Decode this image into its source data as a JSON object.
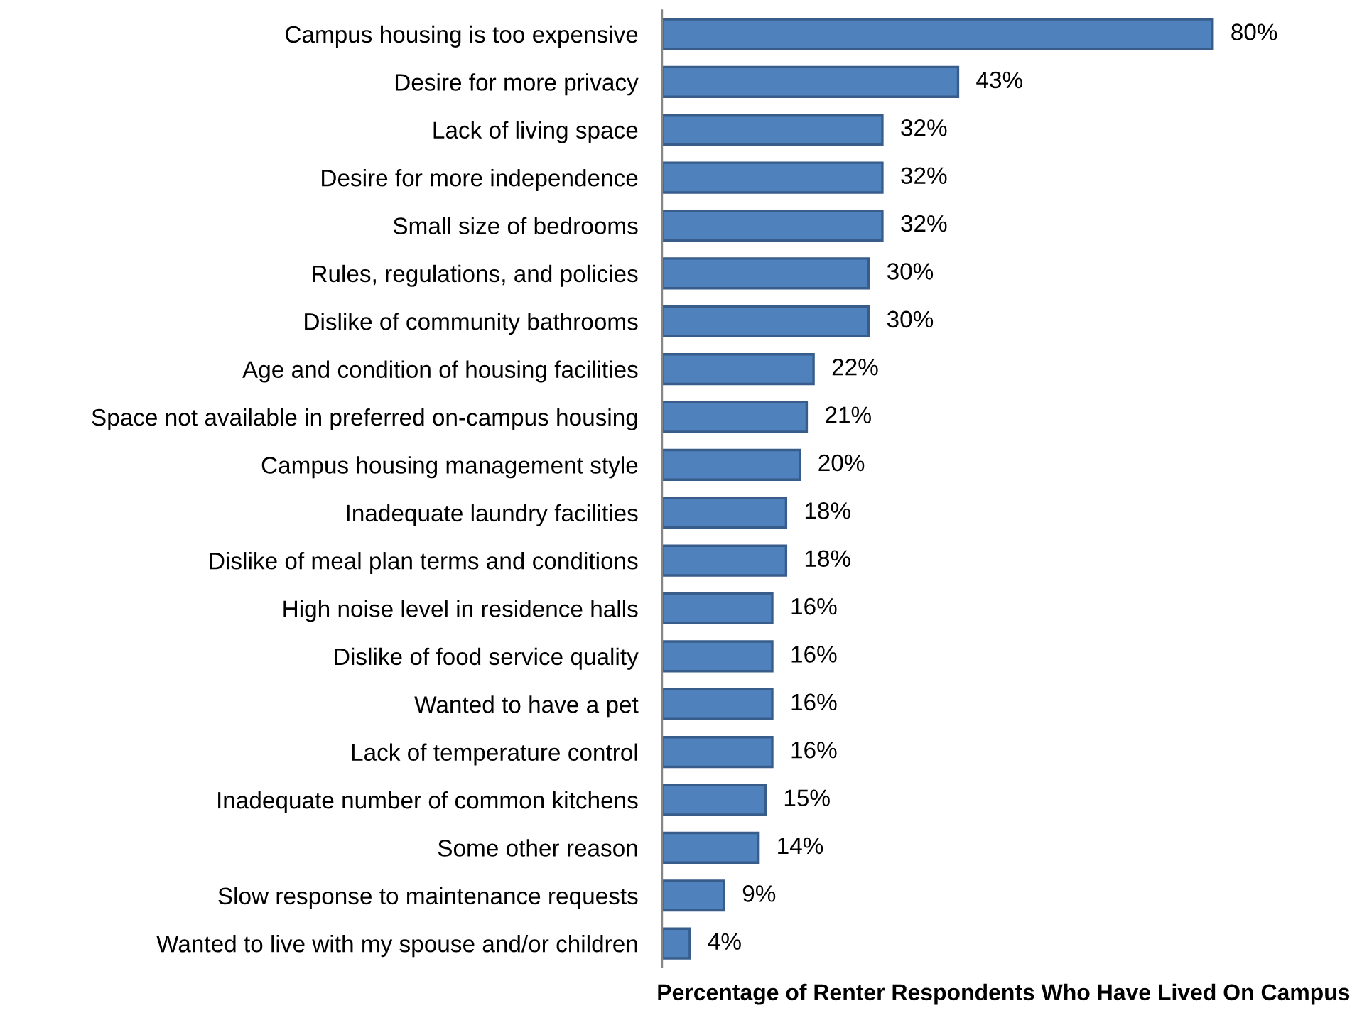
{
  "chart_data": {
    "type": "bar",
    "orientation": "horizontal",
    "xlabel": "Percentage of Renter Respondents Who Have Lived On Campus",
    "categories": [
      "Campus housing is too expensive",
      "Desire for more privacy",
      "Lack of living space",
      "Desire for more independence",
      "Small size of bedrooms",
      "Rules, regulations, and policies",
      "Dislike of community bathrooms",
      "Age and condition of housing facilities",
      "Space not available in preferred on-campus housing",
      "Campus housing management style",
      "Inadequate laundry facilities",
      "Dislike of meal plan terms and conditions",
      "High noise level in residence halls",
      "Dislike of food service quality",
      "Wanted to have a pet",
      "Lack of temperature control",
      "Inadequate number of common kitchens",
      "Some other reason",
      "Slow response to maintenance requests",
      "Wanted to live with my spouse and/or children"
    ],
    "values": [
      80,
      43,
      32,
      32,
      32,
      30,
      30,
      22,
      21,
      20,
      18,
      18,
      16,
      16,
      16,
      16,
      15,
      14,
      9,
      4
    ],
    "value_labels": [
      "80%",
      "43%",
      "32%",
      "32%",
      "32%",
      "30%",
      "30%",
      "22%",
      "21%",
      "20%",
      "18%",
      "18%",
      "16%",
      "16%",
      "16%",
      "16%",
      "15%",
      "14%",
      "9%",
      "4%"
    ],
    "color": "#4f81bd",
    "grid": false,
    "legend": false
  }
}
